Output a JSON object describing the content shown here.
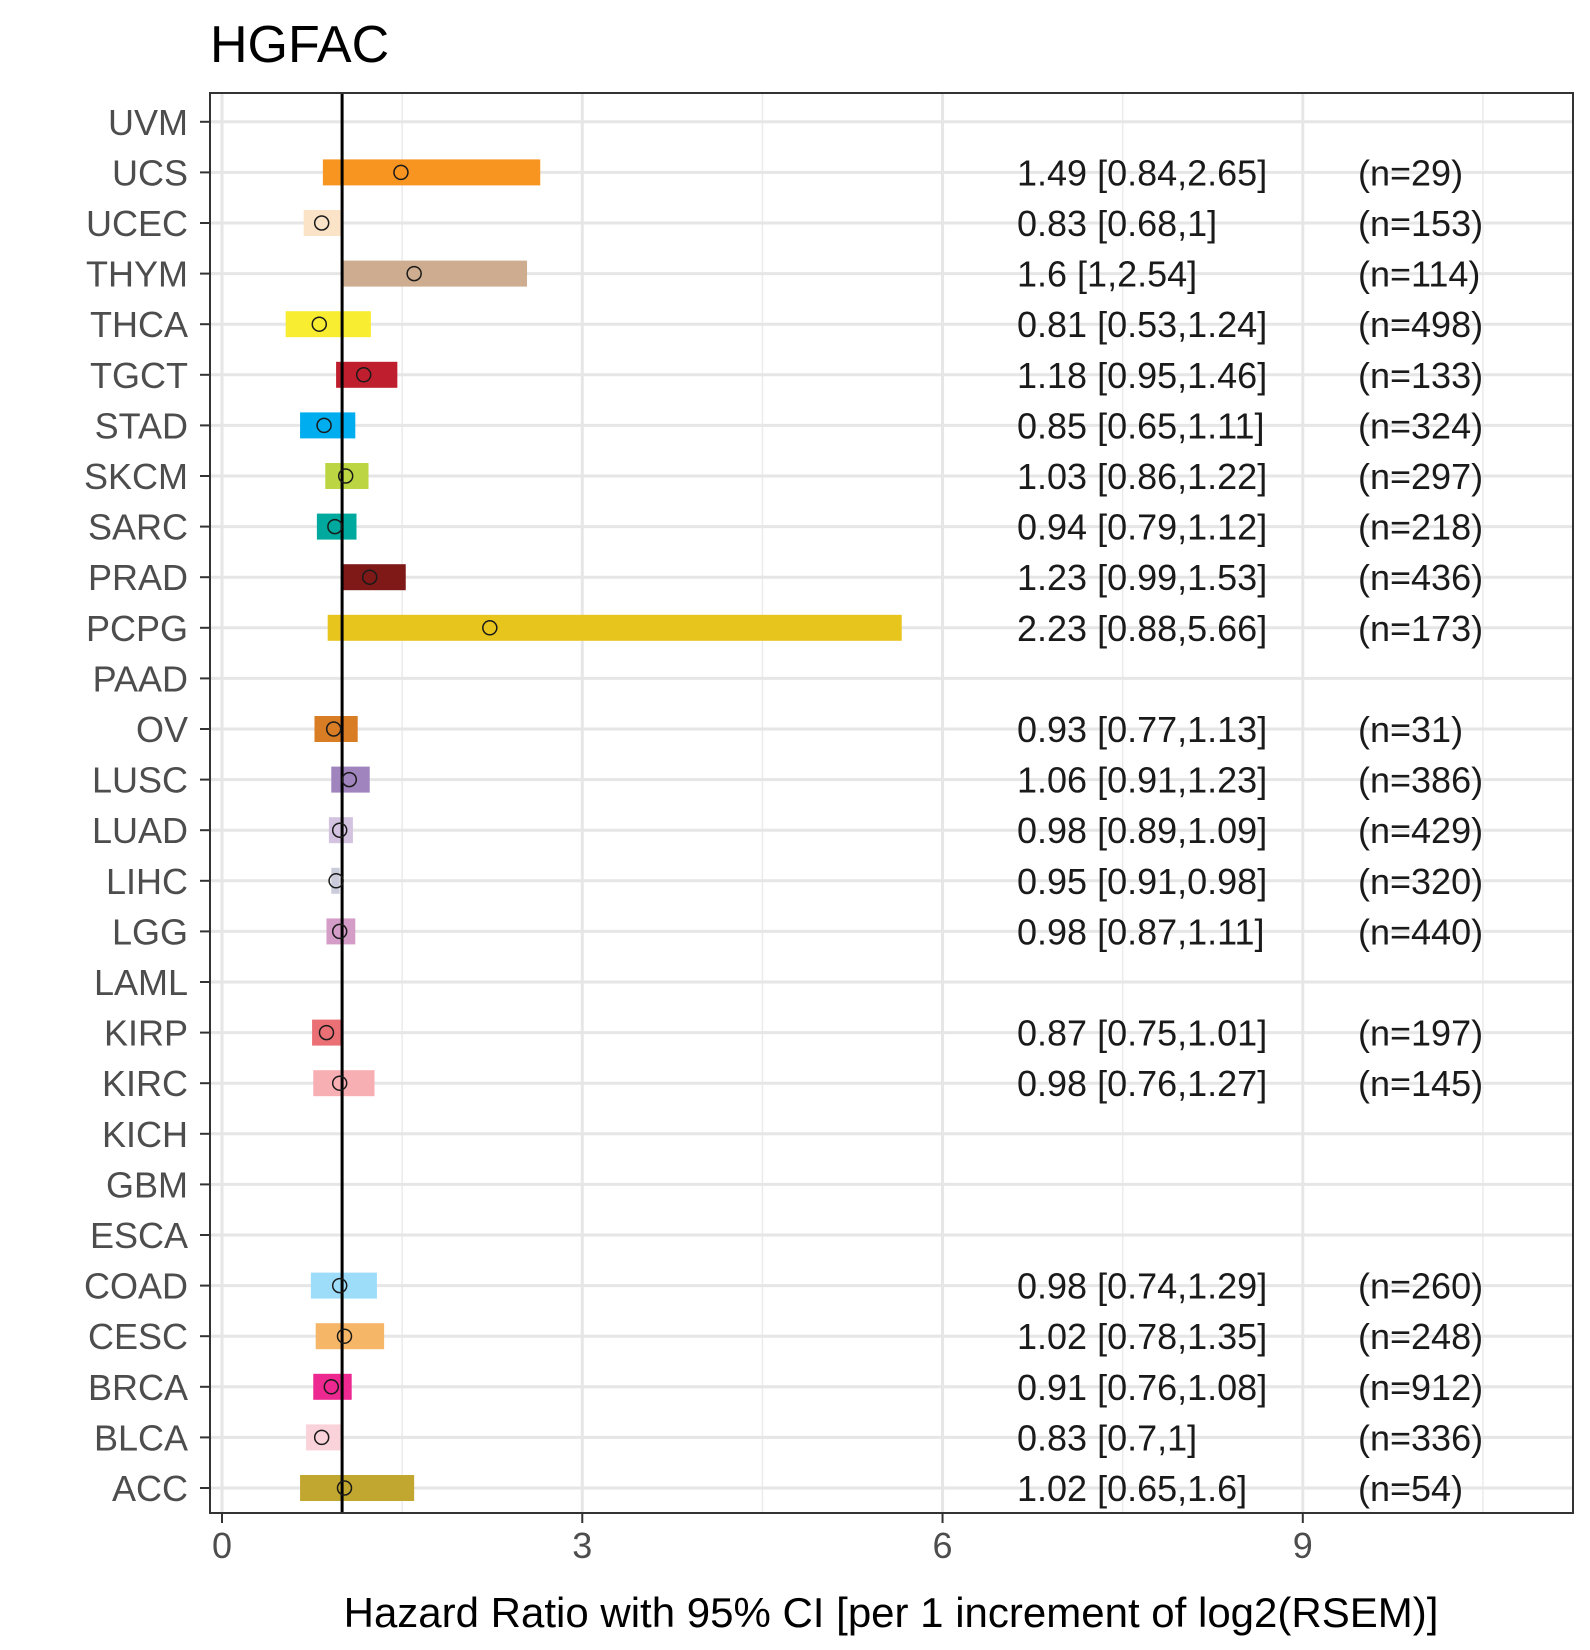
{
  "chart_data": {
    "type": "forest",
    "title": "HGFAC",
    "xlabel": "Hazard Ratio with 95% CI [per 1 increment of log2(RSEM)]",
    "ylabel": "",
    "xlim": [
      -0.1,
      11.25
    ],
    "x_ticks": [
      0,
      3,
      6,
      9
    ],
    "x_tick_labels": [
      "0",
      "3",
      "6",
      "9"
    ],
    "reference_line": 1,
    "grid": true,
    "categories": [
      "ACC",
      "BLCA",
      "BRCA",
      "CESC",
      "COAD",
      "ESCA",
      "GBM",
      "KICH",
      "KIRC",
      "KIRP",
      "LAML",
      "LGG",
      "LIHC",
      "LUAD",
      "LUSC",
      "OV",
      "PAAD",
      "PCPG",
      "PRAD",
      "SARC",
      "SKCM",
      "STAD",
      "TGCT",
      "THCA",
      "THYM",
      "UCEC",
      "UCS",
      "UVM"
    ],
    "rows": [
      {
        "label": "ACC",
        "hr": 1.02,
        "lo": 0.65,
        "hi": 1.6,
        "color": "#C1A72F",
        "ci_text": "1.02 [0.65,1.6]",
        "n_text": "(n=54)"
      },
      {
        "label": "BLCA",
        "hr": 0.83,
        "lo": 0.7,
        "hi": 1,
        "color": "#FAD2D9",
        "ci_text": "0.83 [0.7,1]",
        "n_text": "(n=336)"
      },
      {
        "label": "BRCA",
        "hr": 0.91,
        "lo": 0.76,
        "hi": 1.08,
        "color": "#ED2891",
        "ci_text": "0.91 [0.76,1.08]",
        "n_text": "(n=912)"
      },
      {
        "label": "CESC",
        "hr": 1.02,
        "lo": 0.78,
        "hi": 1.35,
        "color": "#F6B667",
        "ci_text": "1.02 [0.78,1.35]",
        "n_text": "(n=248)"
      },
      {
        "label": "COAD",
        "hr": 0.98,
        "lo": 0.74,
        "hi": 1.29,
        "color": "#9EDDF9",
        "ci_text": "0.98 [0.74,1.29]",
        "n_text": "(n=260)"
      },
      {
        "label": "ESCA",
        "hr": null,
        "lo": null,
        "hi": null,
        "color": "#007EB5",
        "ci_text": "",
        "n_text": ""
      },
      {
        "label": "GBM",
        "hr": null,
        "lo": null,
        "hi": null,
        "color": "#B2509E",
        "ci_text": "",
        "n_text": ""
      },
      {
        "label": "KICH",
        "hr": null,
        "lo": null,
        "hi": null,
        "color": "#ED1C24",
        "ci_text": "",
        "n_text": ""
      },
      {
        "label": "KIRC",
        "hr": 0.98,
        "lo": 0.76,
        "hi": 1.27,
        "color": "#F8AFB3",
        "ci_text": "0.98 [0.76,1.27]",
        "n_text": "(n=145)"
      },
      {
        "label": "KIRP",
        "hr": 0.87,
        "lo": 0.75,
        "hi": 1.01,
        "color": "#EA7075",
        "ci_text": "0.87 [0.75,1.01]",
        "n_text": "(n=197)"
      },
      {
        "label": "LAML",
        "hr": null,
        "lo": null,
        "hi": null,
        "color": "#754C29",
        "ci_text": "",
        "n_text": ""
      },
      {
        "label": "LGG",
        "hr": 0.98,
        "lo": 0.87,
        "hi": 1.11,
        "color": "#D49DC7",
        "ci_text": "0.98 [0.87,1.11]",
        "n_text": "(n=440)"
      },
      {
        "label": "LIHC",
        "hr": 0.95,
        "lo": 0.91,
        "hi": 0.98,
        "color": "#CACCDB",
        "ci_text": "0.95 [0.91,0.98]",
        "n_text": "(n=320)"
      },
      {
        "label": "LUAD",
        "hr": 0.98,
        "lo": 0.89,
        "hi": 1.09,
        "color": "#D3C3E0",
        "ci_text": "0.98 [0.89,1.09]",
        "n_text": "(n=429)"
      },
      {
        "label": "LUSC",
        "hr": 1.06,
        "lo": 0.91,
        "hi": 1.23,
        "color": "#A084BD",
        "ci_text": "1.06 [0.91,1.23]",
        "n_text": "(n=386)"
      },
      {
        "label": "OV",
        "hr": 0.93,
        "lo": 0.77,
        "hi": 1.13,
        "color": "#D97D25",
        "ci_text": "0.93 [0.77,1.13]",
        "n_text": "(n=31)"
      },
      {
        "label": "PAAD",
        "hr": null,
        "lo": null,
        "hi": null,
        "color": "#6E7BA2",
        "ci_text": "",
        "n_text": ""
      },
      {
        "label": "PCPG",
        "hr": 2.23,
        "lo": 0.88,
        "hi": 5.66,
        "color": "#E8C51D",
        "ci_text": "2.23 [0.88,5.66]",
        "n_text": "(n=173)"
      },
      {
        "label": "PRAD",
        "hr": 1.23,
        "lo": 0.99,
        "hi": 1.53,
        "color": "#7E1918",
        "ci_text": "1.23 [0.99,1.53]",
        "n_text": "(n=436)"
      },
      {
        "label": "SARC",
        "hr": 0.94,
        "lo": 0.79,
        "hi": 1.12,
        "color": "#00A99D",
        "ci_text": "0.94 [0.79,1.12]",
        "n_text": "(n=218)"
      },
      {
        "label": "SKCM",
        "hr": 1.03,
        "lo": 0.86,
        "hi": 1.22,
        "color": "#BBD642",
        "ci_text": "1.03 [0.86,1.22]",
        "n_text": "(n=297)"
      },
      {
        "label": "STAD",
        "hr": 0.85,
        "lo": 0.65,
        "hi": 1.11,
        "color": "#00AEEF",
        "ci_text": "0.85 [0.65,1.11]",
        "n_text": "(n=324)"
      },
      {
        "label": "TGCT",
        "hr": 1.18,
        "lo": 0.95,
        "hi": 1.46,
        "color": "#BE1E2D",
        "ci_text": "1.18 [0.95,1.46]",
        "n_text": "(n=133)"
      },
      {
        "label": "THCA",
        "hr": 0.81,
        "lo": 0.53,
        "hi": 1.24,
        "color": "#F9ED32",
        "ci_text": "0.81 [0.53,1.24]",
        "n_text": "(n=498)"
      },
      {
        "label": "THYM",
        "hr": 1.6,
        "lo": 1,
        "hi": 2.54,
        "color": "#CEAC8F",
        "ci_text": "1.6 [1,2.54]",
        "n_text": "(n=114)"
      },
      {
        "label": "UCEC",
        "hr": 0.83,
        "lo": 0.68,
        "hi": 1,
        "color": "#FBE3C7",
        "ci_text": "0.83 [0.68,1]",
        "n_text": "(n=153)"
      },
      {
        "label": "UCS",
        "hr": 1.49,
        "lo": 0.84,
        "hi": 2.65,
        "color": "#F89420",
        "ci_text": "1.49 [0.84,2.65]",
        "n_text": "(n=29)"
      },
      {
        "label": "UVM",
        "hr": null,
        "lo": null,
        "hi": null,
        "color": "#009444",
        "ci_text": "",
        "n_text": ""
      }
    ]
  }
}
